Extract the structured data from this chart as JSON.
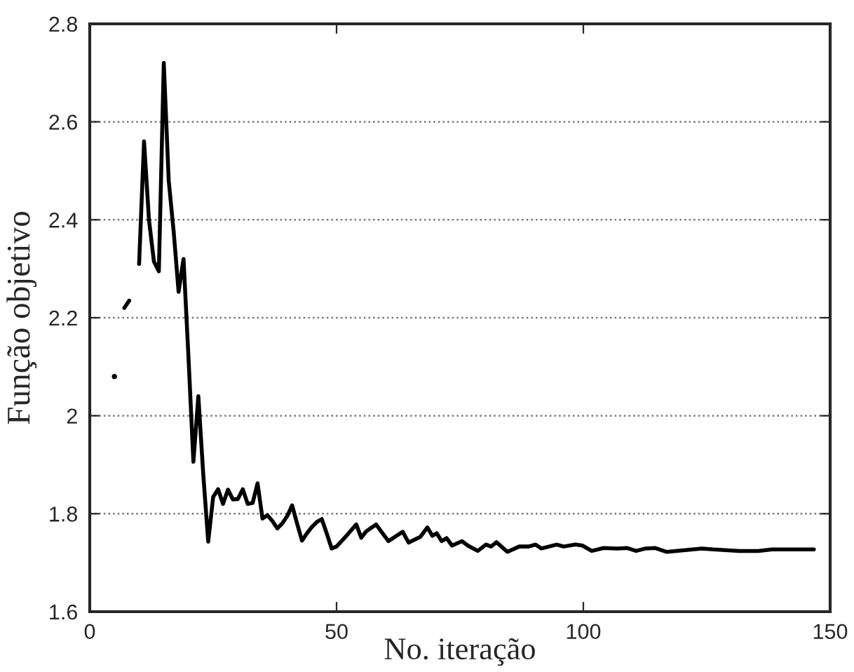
{
  "chart_data": {
    "type": "line",
    "xlabel": "No. iteração",
    "ylabel": "Função objetivo",
    "xlim": [
      0,
      150
    ],
    "xticks": [
      0,
      50,
      100,
      150
    ],
    "ylim": [
      1.6,
      2.8
    ],
    "yticks": [
      1.6,
      1.8,
      2,
      2.2,
      2.4,
      2.6,
      2.8
    ],
    "grid": "y",
    "marker": "none",
    "line_style": "solid",
    "series": [
      {
        "type": "scatter",
        "color": "#000000",
        "x": [
          5
        ],
        "values": [
          2.08
        ]
      },
      {
        "color": "#000000",
        "x": [
          7,
          8
        ],
        "values": [
          2.22,
          2.235
        ]
      },
      {
        "color": "#000000",
        "x": [
          10,
          11,
          12,
          13,
          14,
          15,
          16,
          17,
          18,
          19,
          20,
          21,
          22,
          23,
          24,
          25,
          26,
          27,
          28,
          29,
          30,
          31,
          32,
          33,
          34,
          35,
          36,
          37,
          38,
          39,
          40,
          41,
          42,
          43,
          44,
          45,
          46,
          47,
          48,
          49,
          50,
          52,
          54,
          55,
          56,
          58,
          60.5,
          63.4,
          64.6,
          67,
          68.4,
          69.4,
          70.3,
          71.3,
          72.3,
          73.4,
          75.4,
          76.6,
          78.6,
          80.3,
          81.3,
          82.4,
          84.6,
          87,
          88.9,
          90.3,
          91.5,
          94.6,
          96,
          98.4,
          99.8,
          101.7,
          104.1,
          106.9,
          108.8,
          110.7,
          112.6,
          114.5,
          116.9,
          124,
          126.4,
          131.6,
          135.4,
          138.2,
          146.7
        ],
        "values": [
          2.31,
          2.56,
          2.4,
          2.315,
          2.295,
          2.72,
          2.48,
          2.376,
          2.253,
          2.32,
          2.12,
          1.906,
          2.04,
          1.88,
          1.743,
          1.834,
          1.85,
          1.82,
          1.849,
          1.829,
          1.83,
          1.85,
          1.82,
          1.822,
          1.862,
          1.79,
          1.797,
          1.785,
          1.77,
          1.78,
          1.795,
          1.817,
          1.78,
          1.745,
          1.76,
          1.773,
          1.783,
          1.789,
          1.76,
          1.729,
          1.733,
          1.755,
          1.778,
          1.751,
          1.764,
          1.778,
          1.744,
          1.763,
          1.741,
          1.753,
          1.772,
          1.755,
          1.76,
          1.744,
          1.75,
          1.735,
          1.744,
          1.735,
          1.724,
          1.737,
          1.733,
          1.742,
          1.722,
          1.733,
          1.733,
          1.737,
          1.729,
          1.737,
          1.733,
          1.737,
          1.735,
          1.724,
          1.73,
          1.729,
          1.73,
          1.724,
          1.729,
          1.73,
          1.722,
          1.729,
          1.727,
          1.724,
          1.724,
          1.727,
          1.727
        ]
      }
    ]
  }
}
